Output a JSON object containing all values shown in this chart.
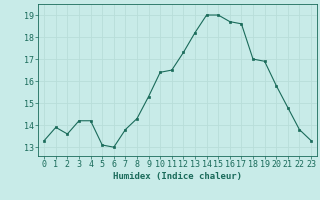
{
  "x": [
    0,
    1,
    2,
    3,
    4,
    5,
    6,
    7,
    8,
    9,
    10,
    11,
    12,
    13,
    14,
    15,
    16,
    17,
    18,
    19,
    20,
    21,
    22,
    23
  ],
  "y": [
    13.3,
    13.9,
    13.6,
    14.2,
    14.2,
    13.1,
    13.0,
    13.8,
    14.3,
    15.3,
    16.4,
    16.5,
    17.3,
    18.2,
    19.0,
    19.0,
    18.7,
    18.6,
    17.0,
    16.9,
    15.8,
    14.8,
    13.8,
    13.3
  ],
  "line_color": "#1a6b5a",
  "marker_color": "#1a6b5a",
  "bg_color": "#c8ebe8",
  "grid_color": "#b8ddd9",
  "xlabel": "Humidex (Indice chaleur)",
  "xlabel_fontsize": 6.5,
  "tick_fontsize": 6,
  "ylim": [
    12.6,
    19.5
  ],
  "xlim": [
    -0.5,
    23.5
  ],
  "yticks": [
    13,
    14,
    15,
    16,
    17,
    18,
    19
  ],
  "xticks": [
    0,
    1,
    2,
    3,
    4,
    5,
    6,
    7,
    8,
    9,
    10,
    11,
    12,
    13,
    14,
    15,
    16,
    17,
    18,
    19,
    20,
    21,
    22,
    23
  ]
}
